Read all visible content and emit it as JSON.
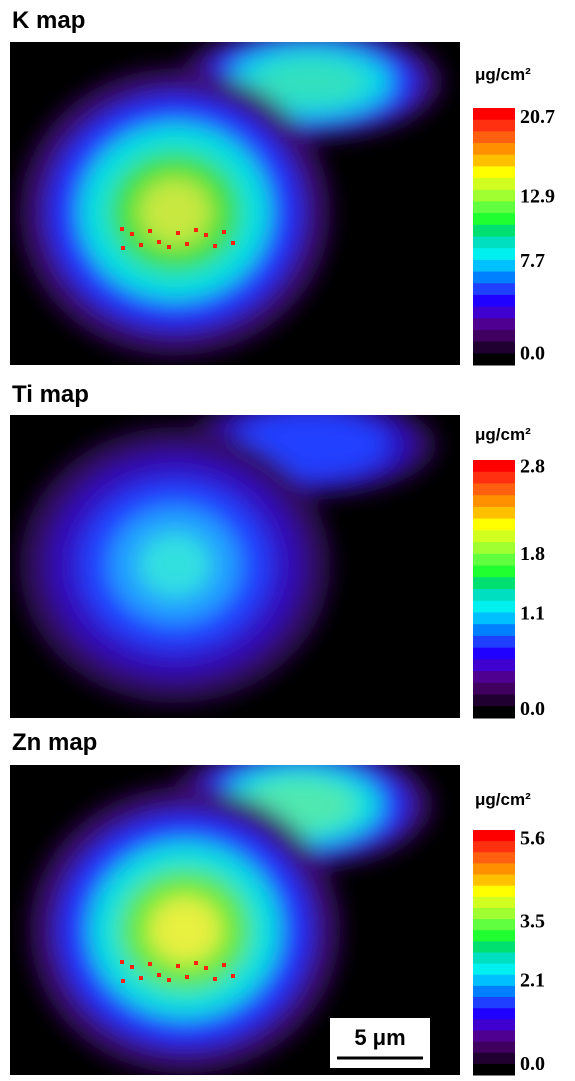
{
  "panels": [
    {
      "title": "K map",
      "unit": "μg/cm²",
      "colorbar_labels": [
        "20.7",
        "12.9",
        "7.7",
        "0.0"
      ]
    },
    {
      "title": "Ti map",
      "unit": "μg/cm²",
      "colorbar_labels": [
        "2.8",
        "1.8",
        "1.1",
        "0.0"
      ]
    },
    {
      "title": "Zn map",
      "unit": "μg/cm²",
      "colorbar_labels": [
        "5.6",
        "3.5",
        "2.1",
        "0.0"
      ]
    }
  ],
  "scale_bar": "5 μm"
}
